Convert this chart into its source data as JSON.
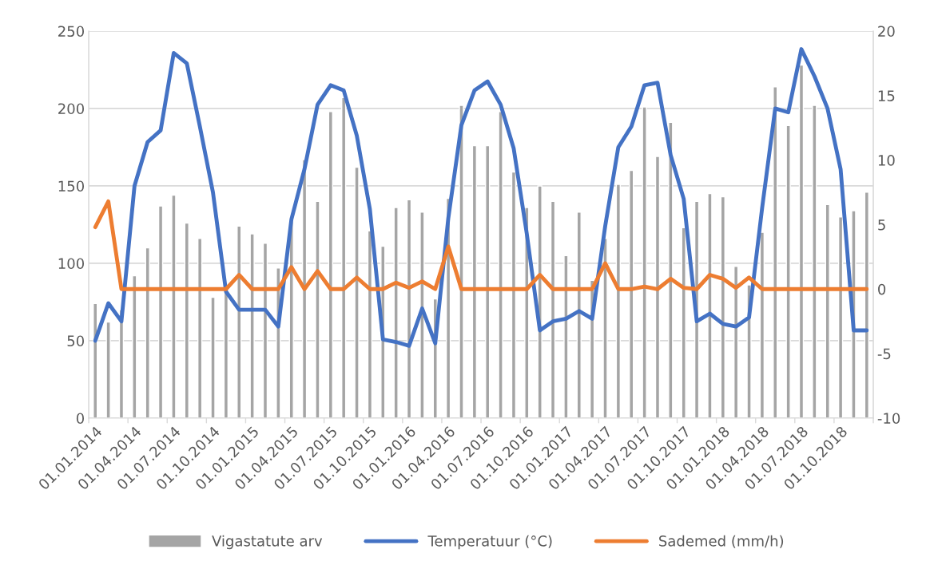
{
  "chart_data": {
    "type": "bar",
    "categories": [
      "01.01.2014",
      null,
      null,
      "01.04.2014",
      null,
      null,
      "01.07.2014",
      null,
      null,
      "01.10.2014",
      null,
      null,
      "01.01.2015",
      null,
      null,
      "01.04.2015",
      null,
      null,
      "01.07.2015",
      null,
      null,
      "01.10.2015",
      null,
      null,
      "01.01.2016",
      null,
      null,
      "01.04.2016",
      null,
      null,
      "01.07.2016",
      null,
      null,
      "01.10.2016",
      null,
      null,
      "01.01.2017",
      null,
      null,
      "01.04.2017",
      null,
      null,
      "01.07.2017",
      null,
      null,
      "01.10.2017",
      null,
      null,
      "01.01.2018",
      null,
      null,
      "01.04.2018",
      null,
      null,
      "01.07.2018",
      null,
      null,
      "01.10.2018",
      null,
      null
    ],
    "series": [
      {
        "name": "Vigastatute arv",
        "color": "#a5a5a5",
        "values": [
          74,
          62,
          70,
          92,
          110,
          137,
          144,
          126,
          116,
          78,
          82,
          124,
          119,
          113,
          97,
          127,
          167,
          140,
          198,
          207,
          162,
          121,
          111,
          136,
          141,
          133,
          77,
          142,
          202,
          176,
          176,
          198,
          159,
          136,
          150,
          140,
          105,
          133,
          89,
          116,
          151,
          160,
          201,
          169,
          191,
          123,
          140,
          145,
          143,
          98,
          86,
          120,
          214,
          189,
          228,
          202,
          138,
          130,
          134,
          146
        ]
      },
      {
        "name": "Temperatuur (°C)",
        "type": "line",
        "axis": "y2",
        "color": "#4472c4",
        "values": [
          -4.0,
          -1.1,
          -2.5,
          8.0,
          11.4,
          12.3,
          18.3,
          17.5,
          12.6,
          7.5,
          -0.2,
          -1.6,
          -1.6,
          -1.6,
          -2.9,
          5.4,
          9.3,
          14.3,
          15.8,
          15.4,
          11.9,
          6.2,
          -3.9,
          -4.1,
          -4.4,
          -1.5,
          -4.2,
          5.5,
          12.7,
          15.4,
          16.1,
          14.3,
          10.9,
          4.3,
          -3.2,
          -2.5,
          -2.3,
          -1.7,
          -2.3,
          4.9,
          11.0,
          12.6,
          15.8,
          16.0,
          10.4,
          7.0,
          -2.5,
          -1.9,
          -2.7,
          -2.9,
          -2.2,
          6.3,
          14.0,
          13.7,
          18.6,
          16.5,
          14.0,
          9.3,
          -3.2,
          -3.2
        ]
      },
      {
        "name": "Sademed (mm/h)",
        "type": "line",
        "axis": "y2",
        "color": "#ed7d31",
        "values": [
          4.8,
          6.8,
          0,
          0,
          0,
          0,
          0,
          0,
          0,
          0,
          0,
          1.1,
          0,
          0,
          0,
          1.7,
          0,
          1.4,
          0,
          0,
          0.9,
          0,
          0,
          0.5,
          0.1,
          0.6,
          0,
          3.3,
          0,
          0,
          0,
          0,
          0,
          0,
          1.1,
          0,
          0,
          0,
          0,
          2.0,
          0,
          0,
          0.2,
          0,
          0.8,
          0.1,
          0,
          1.1,
          0.8,
          0.1,
          0.9,
          0,
          0,
          0,
          0,
          0,
          0,
          0,
          0,
          0
        ]
      }
    ],
    "ylim": [
      0,
      250
    ],
    "yticks": [
      0,
      50,
      100,
      150,
      200,
      250
    ],
    "y2lim": [
      -10,
      20
    ],
    "y2ticks": [
      -10,
      -5,
      0,
      5,
      10,
      15,
      20
    ],
    "grid": "y",
    "legend": "bottom"
  }
}
